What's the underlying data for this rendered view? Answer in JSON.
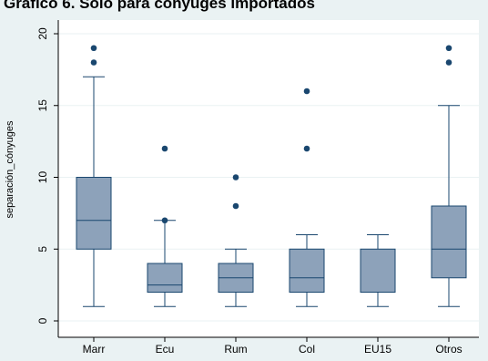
{
  "chart_data": {
    "type": "box",
    "title": "Gráfico 6. Solo para cónyuges importados",
    "ylabel": "separación_cónyuges",
    "xlabel": "",
    "ylim": [
      0,
      21
    ],
    "yticks": [
      0,
      5,
      10,
      15,
      20
    ],
    "grid": "horizontal",
    "categories": [
      "Marr",
      "Ecu",
      "Rum",
      "Col",
      "EU15",
      "Otros"
    ],
    "boxes": [
      {
        "category": "Marr",
        "whisker_low": 1,
        "q1": 5,
        "median": 7,
        "q3": 10,
        "whisker_high": 17,
        "outliers": [
          18,
          19
        ]
      },
      {
        "category": "Ecu",
        "whisker_low": 1,
        "q1": 2,
        "median": 2.5,
        "q3": 4,
        "whisker_high": 7,
        "outliers": [
          7,
          12
        ]
      },
      {
        "category": "Rum",
        "whisker_low": 1,
        "q1": 2,
        "median": 3,
        "q3": 4,
        "whisker_high": 5,
        "outliers": [
          8,
          10
        ]
      },
      {
        "category": "Col",
        "whisker_low": 1,
        "q1": 2,
        "median": 3,
        "q3": 5,
        "whisker_high": 6,
        "outliers": [
          12,
          16
        ]
      },
      {
        "category": "EU15",
        "whisker_low": 1,
        "q1": 2,
        "median": 2,
        "q3": 5,
        "whisker_high": 6,
        "outliers": []
      },
      {
        "category": "Otros",
        "whisker_low": 1,
        "q1": 3,
        "median": 5,
        "q3": 8,
        "whisker_high": 15,
        "outliers": [
          18,
          19
        ]
      }
    ],
    "colors": {
      "box_fill": "#8da2ba",
      "box_stroke": "#1a476f",
      "outlier": "#1a476f",
      "plot_background": "#ffffff",
      "outer_background": "#eaf2f3",
      "grid": "#eaf2f3",
      "axis": "#000000"
    }
  }
}
